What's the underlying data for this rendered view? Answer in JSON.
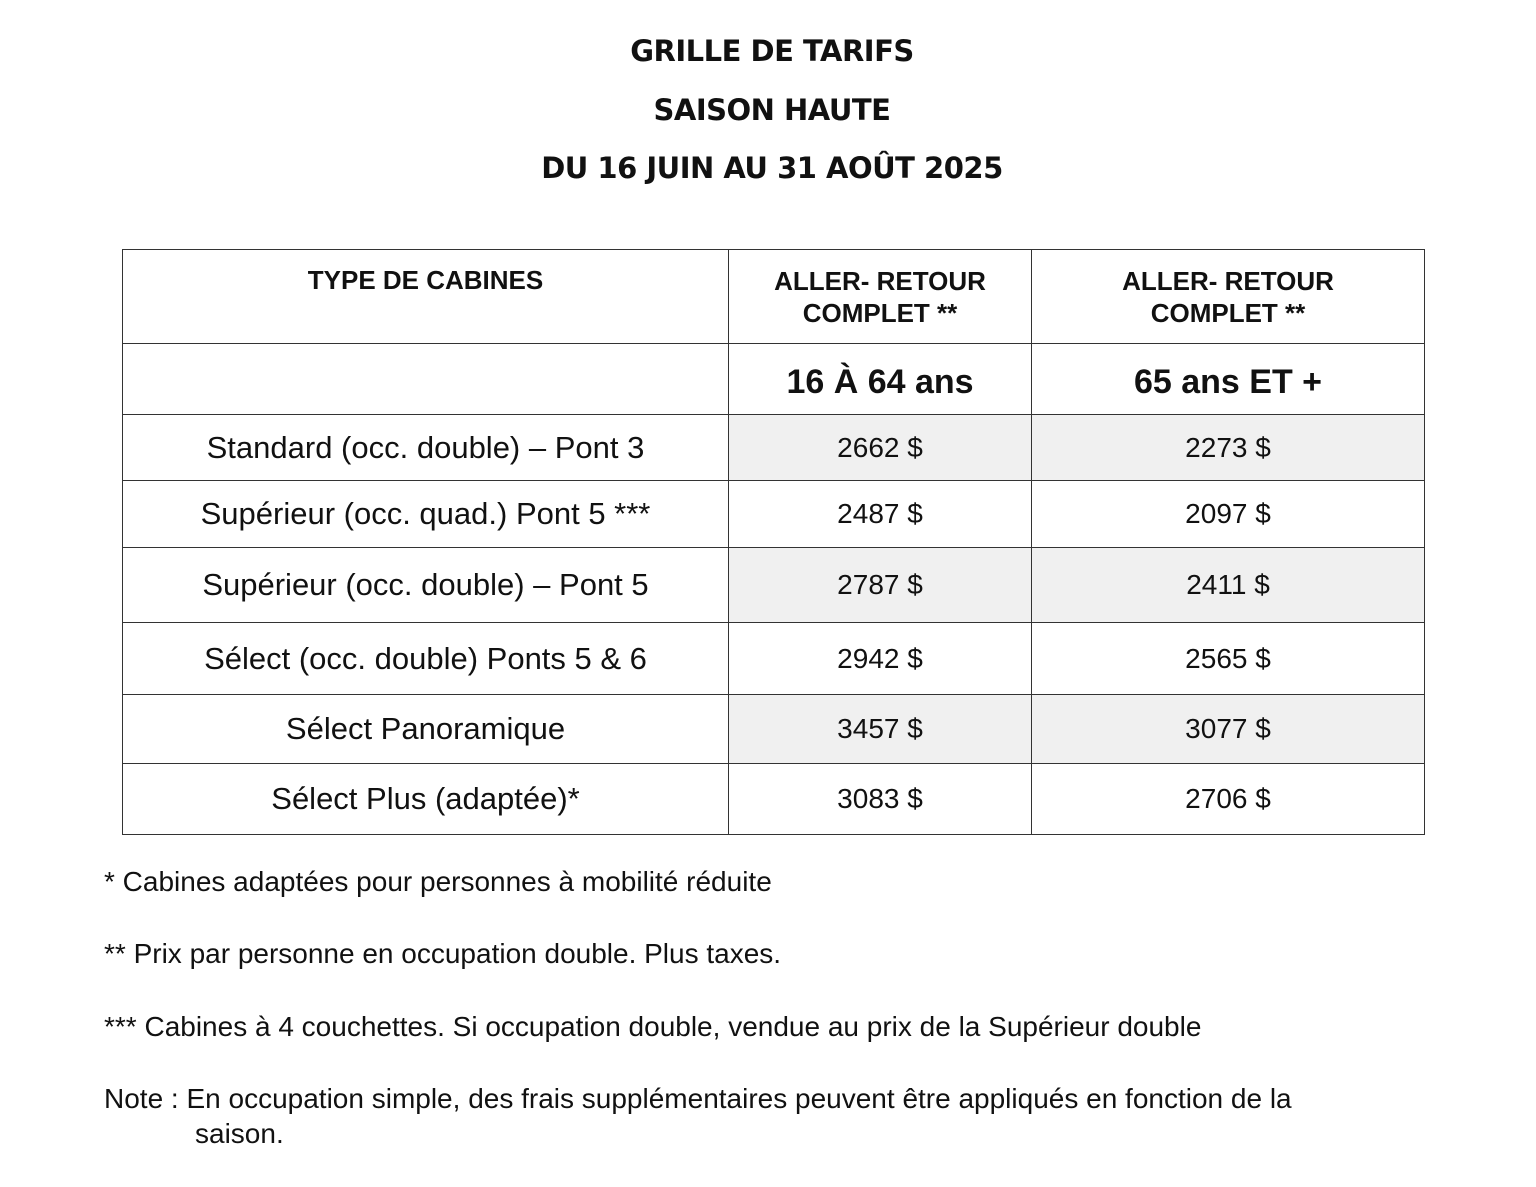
{
  "header": {
    "title": "GRILLE DE TARIFS",
    "season": "SAISON HAUTE",
    "dates": "DU 16 JUIN AU 31 AOÛT 2025"
  },
  "table": {
    "columns": [
      "TYPE DE CABINES",
      "ALLER- RETOUR COMPLET  **",
      "ALLER- RETOUR COMPLET  **"
    ],
    "age_groups": [
      "",
      "16  À  64 ans",
      "65 ans ET +"
    ],
    "rows": [
      {
        "cabin": "Standard (occ. double) – Pont 3",
        "price_16_64": "2662 $",
        "price_65": "2273 $"
      },
      {
        "cabin": "Supérieur (occ. quad.) Pont 5 ***",
        "price_16_64": "2487 $",
        "price_65": "2097 $"
      },
      {
        "cabin": "Supérieur (occ. double) – Pont 5",
        "price_16_64": "2787 $",
        "price_65": "2411 $"
      },
      {
        "cabin": "Sélect (occ. double) Ponts 5 & 6",
        "price_16_64": "2942 $",
        "price_65": "2565 $"
      },
      {
        "cabin": "Sélect Panoramique",
        "price_16_64": "3457 $",
        "price_65": "3077 $"
      },
      {
        "cabin": "Sélect Plus (adaptée)*",
        "price_16_64": "3083 $",
        "price_65": "2706 $"
      }
    ]
  },
  "footnotes": {
    "f1": "* Cabines adaptées pour personnes à mobilité réduite",
    "f2": "** Prix par personne en occupation double. Plus taxes.",
    "f3": "*** Cabines à 4 couchettes. Si occupation double, vendue au prix de la Supérieur double",
    "note_line1": "Note : En occupation simple, des frais supplémentaires peuvent être appliqués en fonction de la",
    "note_line2": "saison."
  }
}
